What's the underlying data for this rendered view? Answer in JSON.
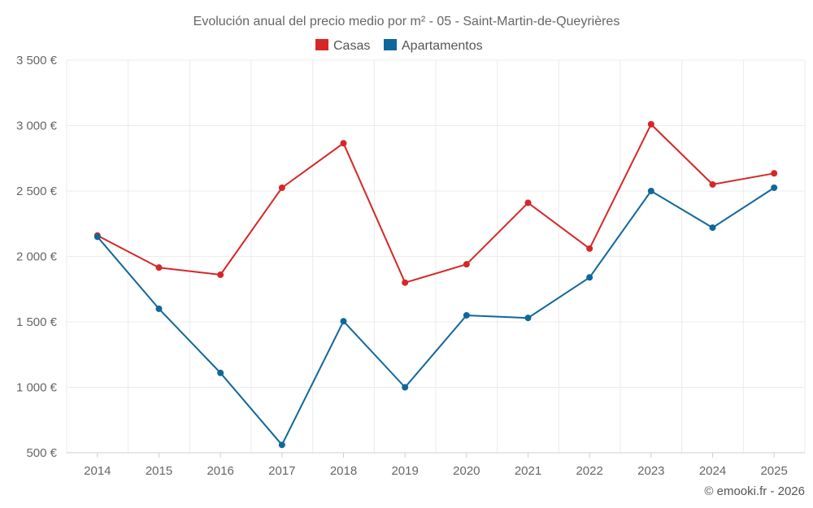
{
  "chart_data": {
    "type": "line",
    "title": "Evolución anual del precio medio por m² - 05 - Saint-Martin-de-Queyrières",
    "categories": [
      "2014",
      "2015",
      "2016",
      "2017",
      "2018",
      "2019",
      "2020",
      "2021",
      "2022",
      "2023",
      "2024",
      "2025"
    ],
    "series": [
      {
        "name": "Casas",
        "color": "#d62728",
        "values": [
          2160,
          1915,
          1860,
          2525,
          2865,
          1800,
          1940,
          2410,
          2060,
          3010,
          2550,
          2635
        ]
      },
      {
        "name": "Apartamentos",
        "color": "#10679b",
        "values": [
          2150,
          1600,
          1110,
          560,
          1505,
          1000,
          1550,
          1530,
          1840,
          2500,
          2220,
          2525
        ]
      }
    ],
    "ylim": [
      500,
      3500
    ],
    "yticks": [
      500,
      1000,
      1500,
      2000,
      2500,
      3000,
      3500
    ],
    "ytick_labels": [
      "500 €",
      "1 000 €",
      "1 500 €",
      "2 000 €",
      "2 500 €",
      "3 000 €",
      "3 500 €"
    ],
    "xlabel": "",
    "ylabel": "",
    "grid": true,
    "legend_position": "top-center"
  },
  "credit": "© emooki.fr - 2026"
}
